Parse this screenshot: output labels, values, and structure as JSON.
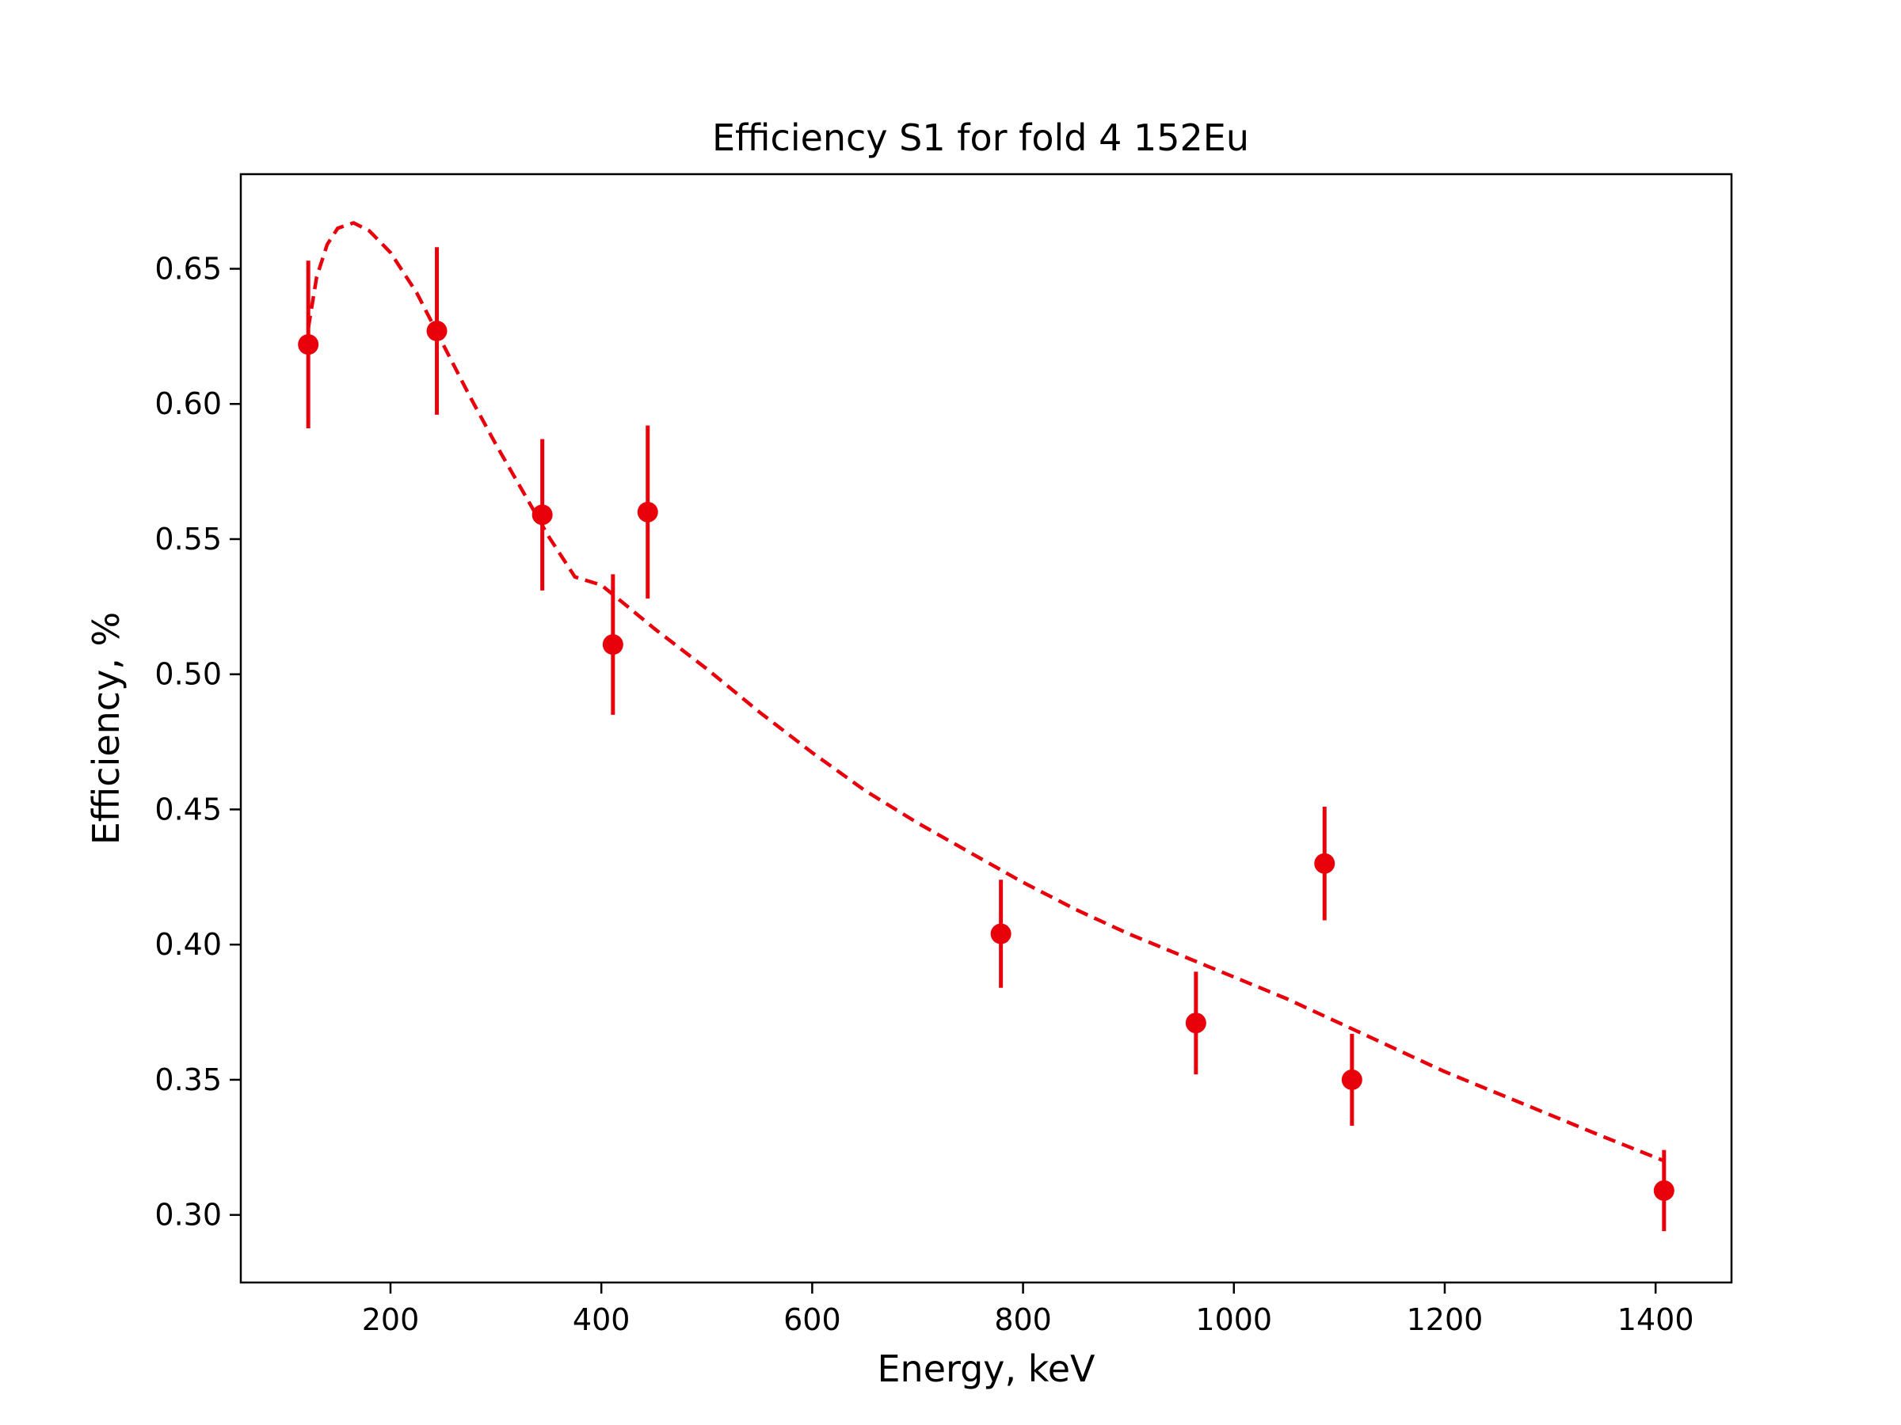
{
  "chart_data": {
    "type": "scatter",
    "title": "Efficiency S1 for fold 4 152Eu",
    "xlabel": "Energy, keV",
    "ylabel": "Efficiency, %",
    "xlim": [
      58,
      1472
    ],
    "ylim": [
      0.275,
      0.685
    ],
    "xticks": [
      200,
      400,
      600,
      800,
      1000,
      1200,
      1400
    ],
    "yticks": [
      0.3,
      0.35,
      0.4,
      0.45,
      0.5,
      0.55,
      0.6,
      0.65
    ],
    "grid": false,
    "color": "#e8000b",
    "points": [
      {
        "x": 122,
        "y": 0.622,
        "yerr": 0.031
      },
      {
        "x": 244,
        "y": 0.627,
        "yerr": 0.031
      },
      {
        "x": 344,
        "y": 0.559,
        "yerr": 0.028
      },
      {
        "x": 411,
        "y": 0.511,
        "yerr": 0.026
      },
      {
        "x": 444,
        "y": 0.56,
        "yerr": 0.032
      },
      {
        "x": 779,
        "y": 0.404,
        "yerr": 0.02
      },
      {
        "x": 964,
        "y": 0.371,
        "yerr": 0.019
      },
      {
        "x": 1086,
        "y": 0.43,
        "yerr": 0.021
      },
      {
        "x": 1112,
        "y": 0.35,
        "yerr": 0.017
      },
      {
        "x": 1408,
        "y": 0.309,
        "yerr": 0.015
      }
    ],
    "fit_curve": {
      "style": "dashed",
      "x": [
        122,
        130,
        140,
        150,
        165,
        180,
        200,
        225,
        250,
        275,
        300,
        325,
        350,
        375,
        400,
        425,
        450,
        500,
        550,
        600,
        650,
        700,
        750,
        800,
        850,
        900,
        950,
        1000,
        1050,
        1100,
        1150,
        1200,
        1250,
        1300,
        1350,
        1408
      ],
      "y": [
        0.628,
        0.647,
        0.659,
        0.665,
        0.667,
        0.664,
        0.656,
        0.641,
        0.622,
        0.603,
        0.585,
        0.568,
        0.551,
        0.536,
        0.533,
        0.525,
        0.517,
        0.502,
        0.486,
        0.471,
        0.457,
        0.445,
        0.434,
        0.423,
        0.413,
        0.404,
        0.396,
        0.388,
        0.38,
        0.371,
        0.362,
        0.353,
        0.345,
        0.337,
        0.329,
        0.32
      ]
    }
  }
}
